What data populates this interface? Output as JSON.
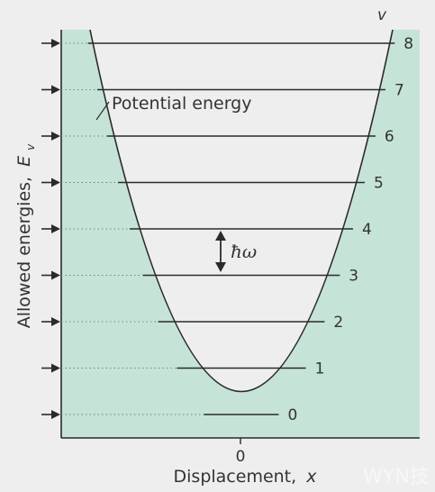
{
  "figure": {
    "quantum_number_label": "v",
    "y_axis_label_main": "Allowed energies,",
    "y_axis_label_symbol": "E",
    "y_axis_label_subscript": "v",
    "x_axis_label_main": "Displacement,",
    "x_axis_label_symbol": "x",
    "origin_label": "0",
    "curve_label": "Potential energy",
    "spacing_label": "ħω",
    "watermark": "WYN技"
  },
  "energy_levels": [
    {
      "v": "0"
    },
    {
      "v": "1"
    },
    {
      "v": "2"
    },
    {
      "v": "3"
    },
    {
      "v": "4"
    },
    {
      "v": "5"
    },
    {
      "v": "6"
    },
    {
      "v": "7"
    },
    {
      "v": "8"
    }
  ],
  "colors": {
    "background": "#eeeeee",
    "well_fill": "#c6e3d7",
    "line": "#2a2a2a",
    "text": "#333333"
  }
}
